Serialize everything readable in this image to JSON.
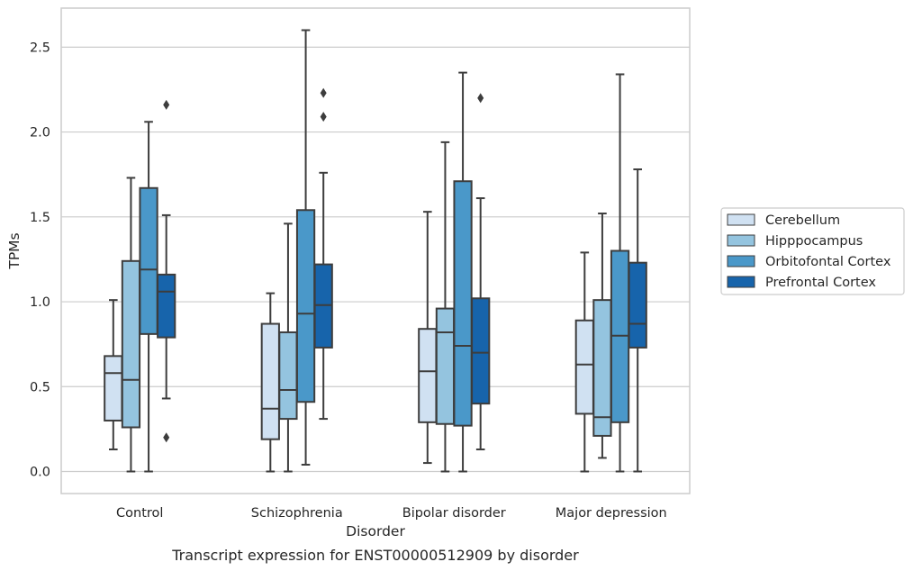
{
  "chart_data": {
    "type": "box",
    "caption": "Transcript expression for ENST00000512909 by disorder",
    "xlabel": "Disorder",
    "ylabel": "TPMs",
    "ylim": [
      -0.13,
      2.73
    ],
    "yticks": [
      "0.0",
      "0.5",
      "1.0",
      "1.5",
      "2.0",
      "2.5"
    ],
    "categories": [
      "Control",
      "Schizophrenia",
      "Bipolar disorder",
      "Major depression"
    ],
    "grid": true,
    "legend_position": "right",
    "series": [
      {
        "name": "Cerebellum",
        "color": "#d0e1f2",
        "boxes": [
          {
            "whislo": 0.13,
            "q1": 0.3,
            "med": 0.58,
            "q3": 0.68,
            "whishi": 1.01,
            "fliers": []
          },
          {
            "whislo": 0.0,
            "q1": 0.19,
            "med": 0.37,
            "q3": 0.87,
            "whishi": 1.05,
            "fliers": []
          },
          {
            "whislo": 0.05,
            "q1": 0.29,
            "med": 0.59,
            "q3": 0.84,
            "whishi": 1.53,
            "fliers": []
          },
          {
            "whislo": 0.0,
            "q1": 0.34,
            "med": 0.63,
            "q3": 0.89,
            "whishi": 1.29,
            "fliers": []
          }
        ]
      },
      {
        "name": "Hipppocampus",
        "color": "#94c4df",
        "boxes": [
          {
            "whislo": 0.0,
            "q1": 0.26,
            "med": 0.54,
            "q3": 1.24,
            "whishi": 1.73,
            "fliers": []
          },
          {
            "whislo": 0.0,
            "q1": 0.31,
            "med": 0.48,
            "q3": 0.82,
            "whishi": 1.46,
            "fliers": []
          },
          {
            "whislo": 0.0,
            "q1": 0.28,
            "med": 0.82,
            "q3": 0.96,
            "whishi": 1.94,
            "fliers": []
          },
          {
            "whislo": 0.08,
            "q1": 0.21,
            "med": 0.32,
            "q3": 1.01,
            "whishi": 1.52,
            "fliers": []
          }
        ]
      },
      {
        "name": "Orbitofontal Cortex",
        "color": "#4a98c9",
        "boxes": [
          {
            "whislo": 0.0,
            "q1": 0.81,
            "med": 1.19,
            "q3": 1.67,
            "whishi": 2.06,
            "fliers": []
          },
          {
            "whislo": 0.04,
            "q1": 0.41,
            "med": 0.93,
            "q3": 1.54,
            "whishi": 2.6,
            "fliers": []
          },
          {
            "whislo": 0.0,
            "q1": 0.27,
            "med": 0.74,
            "q3": 1.71,
            "whishi": 2.35,
            "fliers": []
          },
          {
            "whislo": 0.0,
            "q1": 0.29,
            "med": 0.8,
            "q3": 1.3,
            "whishi": 2.34,
            "fliers": []
          }
        ]
      },
      {
        "name": "Prefrontal Cortex",
        "color": "#1764ab",
        "boxes": [
          {
            "whislo": 0.43,
            "q1": 0.79,
            "med": 1.06,
            "q3": 1.16,
            "whishi": 1.51,
            "fliers": [
              2.16,
              0.2
            ]
          },
          {
            "whislo": 0.31,
            "q1": 0.73,
            "med": 0.98,
            "q3": 1.22,
            "whishi": 1.76,
            "fliers": [
              2.23,
              2.09
            ]
          },
          {
            "whislo": 0.13,
            "q1": 0.4,
            "med": 0.7,
            "q3": 1.02,
            "whishi": 1.61,
            "fliers": [
              2.2
            ]
          },
          {
            "whislo": 0.0,
            "q1": 0.73,
            "med": 0.87,
            "q3": 1.23,
            "whishi": 1.78,
            "fliers": []
          }
        ]
      }
    ]
  }
}
